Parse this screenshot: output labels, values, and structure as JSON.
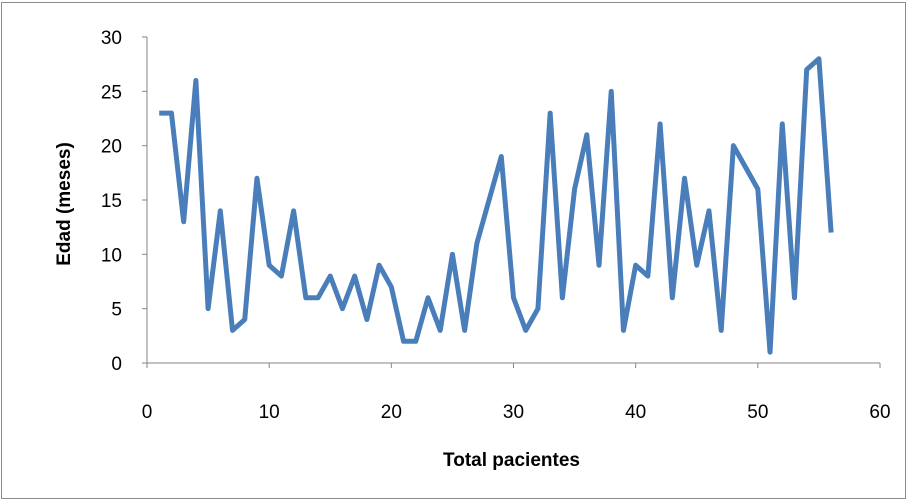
{
  "chart_data": {
    "type": "line",
    "title": "",
    "xlabel": "Total pacientes",
    "ylabel": "Edad (meses)",
    "xlim": [
      0,
      60
    ],
    "ylim": [
      0,
      30
    ],
    "x_ticks": [
      "0",
      "10",
      "20",
      "30",
      "40",
      "50",
      "60"
    ],
    "y_ticks": [
      "0",
      "5",
      "10",
      "15",
      "20",
      "25",
      "30"
    ],
    "grid": false,
    "legend": "none",
    "series": [
      {
        "color": "#4a7ebb",
        "x": [
          1,
          2,
          3,
          4,
          5,
          6,
          7,
          8,
          9,
          10,
          11,
          12,
          13,
          14,
          15,
          16,
          17,
          18,
          19,
          20,
          21,
          22,
          23,
          24,
          25,
          26,
          27,
          28,
          29,
          30,
          31,
          32,
          33,
          34,
          35,
          36,
          37,
          38,
          39,
          40,
          41,
          42,
          43,
          44,
          45,
          46,
          47,
          48,
          49,
          50,
          51,
          52,
          53,
          54,
          55,
          56
        ],
        "y": [
          23,
          23,
          13,
          26,
          5,
          14,
          3,
          4,
          17,
          9,
          8,
          14,
          6,
          6,
          8,
          5,
          8,
          4,
          9,
          7,
          2,
          2,
          6,
          3,
          10,
          3,
          11,
          15,
          19,
          6,
          3,
          5,
          23,
          6,
          16,
          21,
          9,
          25,
          3,
          9,
          8,
          22,
          6,
          17,
          9,
          14,
          3,
          20,
          18,
          16,
          1,
          22,
          6,
          27,
          28,
          12
        ]
      }
    ]
  }
}
